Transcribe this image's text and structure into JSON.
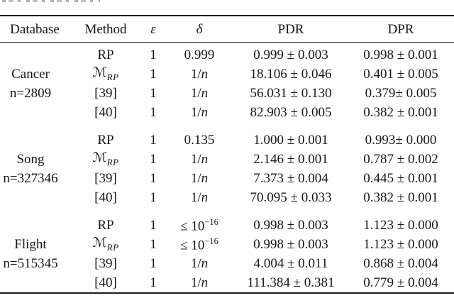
{
  "table": {
    "headers": [
      "Database",
      "Method",
      "ε",
      "δ",
      "PDR",
      "DPR"
    ],
    "groups": [
      {
        "database": "Cancer",
        "size": "n=2809",
        "rows": [
          {
            "method": {
              "text": "RP"
            },
            "epsilon": "1",
            "delta": {
              "pre": "0.999"
            },
            "pdr": "0.999 ± 0.003",
            "dpr": "0.998 ± 0.001"
          },
          {
            "method": {
              "text": "ℳ",
              "sub": "RP"
            },
            "epsilon": "1",
            "delta": {
              "pre": "1/",
              "var": "n"
            },
            "pdr": "18.106 ± 0.046",
            "dpr": "0.401 ± 0.005"
          },
          {
            "method": {
              "text": "[39]"
            },
            "epsilon": "1",
            "delta": {
              "pre": "1/",
              "var": "n"
            },
            "pdr": "56.031 ± 0.130",
            "dpr": "0.379± 0.005"
          },
          {
            "method": {
              "text": "[40]"
            },
            "epsilon": "1",
            "delta": {
              "pre": "1/",
              "var": "n"
            },
            "pdr": "82.903 ± 0.005",
            "dpr": "0.382 ± 0.001"
          }
        ]
      },
      {
        "database": "Song",
        "size": "n=327346",
        "rows": [
          {
            "method": {
              "text": "RP"
            },
            "epsilon": "1",
            "delta": {
              "pre": "0.135"
            },
            "pdr": "1.000 ± 0.001",
            "dpr": "0.993± 0.000"
          },
          {
            "method": {
              "text": "ℳ",
              "sub": "RP"
            },
            "epsilon": "1",
            "delta": {
              "pre": "1/",
              "var": "n"
            },
            "pdr": "2.146 ± 0.001",
            "dpr": "0.787 ± 0.002"
          },
          {
            "method": {
              "text": "[39]"
            },
            "epsilon": "1",
            "delta": {
              "pre": "1/",
              "var": "n"
            },
            "pdr": "7.373 ± 0.004",
            "dpr": "0.445 ± 0.001"
          },
          {
            "method": {
              "text": "[40]"
            },
            "epsilon": "1",
            "delta": {
              "pre": "1/",
              "var": "n"
            },
            "pdr": "70.095 ± 0.033",
            "dpr": "0.382 ± 0.001"
          }
        ]
      },
      {
        "database": "Flight",
        "size": "n=515345",
        "rows": [
          {
            "method": {
              "text": "RP"
            },
            "epsilon": "1",
            "delta": {
              "pre": "≤ 10",
              "sup": "−16"
            },
            "pdr": "0.998 ± 0.003",
            "dpr": "1.123 ± 0.000"
          },
          {
            "method": {
              "text": "ℳ",
              "sub": "RP"
            },
            "epsilon": "1",
            "delta": {
              "pre": "≤ 10",
              "sup": "−16"
            },
            "pdr": "0.998 ± 0.003",
            "dpr": "1.123 ± 0.000"
          },
          {
            "method": {
              "text": "[39]"
            },
            "epsilon": "1",
            "delta": {
              "pre": "1/",
              "var": "n"
            },
            "pdr": "4.004 ± 0.011",
            "dpr": "0.868 ± 0.004"
          },
          {
            "method": {
              "text": "[40]"
            },
            "epsilon": "1",
            "delta": {
              "pre": "1/",
              "var": "n"
            },
            "pdr": "111.384 ± 0.381",
            "dpr": "0.779 ± 0.004"
          }
        ]
      }
    ]
  }
}
